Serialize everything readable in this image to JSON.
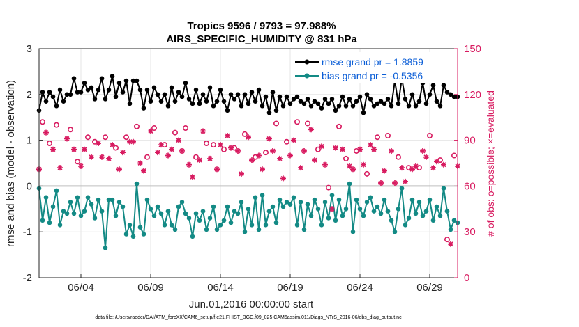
{
  "chart_data": {
    "type": "line",
    "title": "Tropics 9596 / 9793 = 97.988%",
    "subtitle": "AIRS_SPECIFIC_HUMIDITY @ 831 hPa",
    "xlabel": "Jun.01,2016 00:00:00 start",
    "ylabel": "rmse and bias (model - observation)",
    "ylabel_right": "# of obs: o=possible; ×=evaluated",
    "footer": "data file: /Users/raeder/DAI/ATM_forcXX/CAM6_setup/f.e21.FHIST_BGC.f09_025.CAM6assim.011/Diags_NTrS_2016-06/obs_diag_output.nc",
    "xlim": [
      1.0,
      31.0
    ],
    "ylim": [
      -2,
      3
    ],
    "ylim_right": [
      0,
      150
    ],
    "x_ticks": [
      4,
      9,
      14,
      19,
      24,
      29
    ],
    "x_tick_labels": [
      "06/04",
      "06/09",
      "06/14",
      "06/19",
      "06/24",
      "06/29"
    ],
    "y_ticks": [
      "-2",
      "-1",
      "0",
      "1",
      "2",
      "3"
    ],
    "y_ticks_right": [
      "0",
      "30",
      "60",
      "90",
      "120",
      "150"
    ],
    "grid": true,
    "legend_location": "top-right",
    "series": [
      {
        "name": "rmse grand pr = 1.8859",
        "axis": "left",
        "color": "#000000",
        "marker": "filled-circle",
        "x": [
          1.0,
          1.25,
          1.5,
          1.75,
          2.0,
          2.25,
          2.5,
          2.75,
          3.0,
          3.25,
          3.5,
          3.75,
          4.0,
          4.25,
          4.5,
          4.75,
          5.0,
          5.25,
          5.5,
          5.75,
          6.0,
          6.25,
          6.5,
          6.75,
          7.0,
          7.25,
          7.5,
          7.75,
          8.0,
          8.25,
          8.5,
          8.75,
          9.0,
          9.25,
          9.5,
          9.75,
          10.0,
          10.25,
          10.5,
          10.75,
          11.0,
          11.25,
          11.5,
          11.75,
          12.0,
          12.25,
          12.5,
          12.75,
          13.0,
          13.25,
          13.5,
          13.75,
          14.0,
          14.25,
          14.5,
          14.75,
          15.0,
          15.25,
          15.5,
          15.75,
          16.0,
          16.25,
          16.5,
          16.75,
          17.0,
          17.25,
          17.5,
          17.75,
          18.0,
          18.25,
          18.5,
          18.75,
          19.0,
          19.25,
          19.5,
          19.75,
          20.0,
          20.25,
          20.5,
          20.75,
          21.0,
          21.25,
          21.5,
          21.75,
          22.0,
          22.25,
          22.5,
          22.75,
          23.0,
          23.25,
          23.5,
          23.75,
          24.0,
          24.25,
          24.5,
          24.75,
          25.0,
          25.25,
          25.5,
          25.75,
          26.0,
          26.25,
          26.5,
          26.75,
          27.0,
          27.25,
          27.5,
          27.75,
          28.0,
          28.25,
          28.5,
          28.75,
          29.0,
          29.25,
          29.5,
          29.75,
          30.0,
          30.25,
          30.5,
          30.75,
          31.0
        ],
        "values": [
          1.65,
          2.05,
          1.85,
          2.05,
          1.95,
          1.75,
          2.1,
          1.85,
          2.0,
          2.0,
          2.35,
          2.05,
          2.05,
          2.25,
          2.1,
          2.15,
          1.9,
          2.1,
          2.35,
          1.9,
          2.1,
          2.4,
          1.95,
          2.25,
          2.05,
          2.3,
          1.8,
          2.3,
          2.3,
          2.1,
          1.7,
          2.1,
          1.85,
          2.15,
          2.0,
          1.85,
          2.0,
          1.75,
          2.15,
          1.85,
          2.05,
          1.95,
          2.25,
          1.9,
          1.8,
          2.1,
          1.8,
          2.0,
          1.85,
          2.15,
          1.75,
          1.85,
          2.1,
          1.85,
          1.65,
          2.0,
          1.9,
          2.0,
          1.75,
          2.0,
          1.8,
          2.05,
          1.85,
          2.1,
          1.75,
          1.95,
          1.6,
          2.05,
          1.65,
          1.95,
          1.75,
          1.95,
          1.8,
          1.9,
          1.95,
          1.85,
          1.8,
          1.9,
          1.75,
          1.85,
          1.8,
          1.7,
          1.9,
          1.8,
          1.9,
          1.65,
          1.75,
          1.95,
          1.75,
          1.9,
          1.75,
          1.85,
          1.95,
          1.6,
          2.0,
          1.9,
          1.75,
          1.8,
          1.85,
          1.8,
          1.9,
          1.75,
          2.3,
          1.8,
          2.35,
          1.9,
          1.75,
          2.0,
          1.75,
          1.85,
          2.25,
          1.8,
          2.0,
          2.2,
          1.85,
          1.75,
          2.2,
          2.05,
          2.0,
          1.95,
          1.95
        ]
      },
      {
        "name": "bias grand pr = -0.5356",
        "axis": "left",
        "color": "#138a85",
        "marker": "filled-circle",
        "x": [
          1.0,
          1.25,
          1.5,
          1.75,
          2.0,
          2.25,
          2.5,
          2.75,
          3.0,
          3.25,
          3.5,
          3.75,
          4.0,
          4.25,
          4.5,
          4.75,
          5.0,
          5.25,
          5.5,
          5.75,
          6.0,
          6.25,
          6.5,
          6.75,
          7.0,
          7.25,
          7.5,
          7.75,
          8.0,
          8.25,
          8.5,
          8.75,
          9.0,
          9.25,
          9.5,
          9.75,
          10.0,
          10.25,
          10.5,
          10.75,
          11.0,
          11.25,
          11.5,
          11.75,
          12.0,
          12.25,
          12.5,
          12.75,
          13.0,
          13.25,
          13.5,
          13.75,
          14.0,
          14.25,
          14.5,
          14.75,
          15.0,
          15.25,
          15.5,
          15.75,
          16.0,
          16.25,
          16.5,
          16.75,
          17.0,
          17.25,
          17.5,
          17.75,
          18.0,
          18.25,
          18.5,
          18.75,
          19.0,
          19.25,
          19.5,
          19.75,
          20.0,
          20.25,
          20.5,
          20.75,
          21.0,
          21.25,
          21.5,
          21.75,
          22.0,
          22.25,
          22.5,
          22.75,
          23.0,
          23.25,
          23.5,
          23.75,
          24.0,
          24.25,
          24.5,
          24.75,
          25.0,
          25.25,
          25.5,
          25.75,
          26.0,
          26.25,
          26.5,
          26.75,
          27.0,
          27.25,
          27.5,
          27.75,
          28.0,
          28.25,
          28.5,
          28.75,
          29.0,
          29.25,
          29.5,
          29.75,
          30.0,
          30.25,
          30.5,
          30.75,
          31.0
        ],
        "values": [
          -0.05,
          -0.75,
          -0.25,
          -0.8,
          -0.45,
          -0.1,
          -0.85,
          -0.55,
          -0.6,
          -0.35,
          -0.6,
          -0.25,
          -0.65,
          -0.55,
          -0.25,
          -0.4,
          -0.7,
          -0.3,
          -0.55,
          -1.35,
          -0.3,
          -0.3,
          -0.65,
          -0.35,
          -0.45,
          -1.05,
          -0.85,
          -1.1,
          0.05,
          -0.9,
          -1.05,
          -0.3,
          -0.5,
          -0.65,
          -0.45,
          -0.6,
          -0.85,
          -0.55,
          -0.85,
          -0.95,
          -0.45,
          -0.35,
          -0.6,
          -0.7,
          -1.1,
          -0.6,
          -0.75,
          -0.55,
          -0.95,
          -0.7,
          -0.45,
          -0.95,
          -0.85,
          -0.75,
          -0.45,
          -0.8,
          -0.55,
          -0.6,
          -0.35,
          -1.0,
          -0.5,
          -0.85,
          -0.25,
          -0.95,
          -0.2,
          -0.85,
          -0.55,
          -0.45,
          -0.8,
          -0.3,
          -0.45,
          -0.35,
          -0.4,
          -0.25,
          -0.85,
          -0.35,
          -0.95,
          -0.4,
          -0.65,
          -0.3,
          -0.5,
          -0.85,
          -0.35,
          -0.7,
          -0.2,
          -0.75,
          -0.3,
          -0.65,
          -0.5,
          0.05,
          -1.0,
          -0.3,
          -0.5,
          -0.65,
          -0.35,
          -0.25,
          -0.55,
          -0.45,
          -0.6,
          -0.3,
          -0.55,
          -0.75,
          -1.0,
          -0.5,
          -0.05,
          -0.85,
          -0.7,
          -0.3,
          -0.6,
          -0.35,
          -0.65,
          -0.55,
          -0.3,
          -0.75,
          -0.45,
          -0.65,
          -0.05,
          -0.55,
          -0.95,
          -0.75,
          -0.8
        ]
      },
      {
        "name": "possible",
        "axis": "right",
        "color": "#d81b60",
        "marker": "open-circle",
        "x": [
          1.25,
          1.75,
          2.25,
          3.25,
          3.75,
          4.5,
          5.0,
          5.75,
          6.5,
          7.25,
          8.0,
          8.75,
          9.25,
          10.0,
          10.75,
          11.5,
          12.25,
          13.0,
          13.5,
          14.25,
          15.0,
          15.75,
          16.5,
          17.25,
          18.0,
          18.75,
          19.5,
          20.25,
          21.0,
          21.75,
          22.5,
          23.0,
          23.75,
          24.5,
          25.25,
          26.0,
          26.75,
          27.5,
          28.25,
          29.0,
          29.75,
          30.25,
          30.75
        ],
        "values": [
          102,
          88,
          100,
          97,
          76,
          92,
          89,
          92,
          85,
          92,
          99,
          79,
          98,
          87,
          95,
          98,
          79,
          88,
          87,
          84,
          85,
          94,
          79,
          82,
          101,
          89,
          102,
          101,
          84,
          59,
          99,
          78,
          83,
          68,
          92,
          93,
          79,
          72,
          72,
          93,
          77,
          25,
          80
        ]
      },
      {
        "name": "evaluated",
        "axis": "right",
        "color": "#d81b60",
        "marker": "asterisk",
        "x": [
          1.0,
          1.5,
          2.0,
          2.5,
          3.0,
          3.5,
          4.0,
          4.25,
          4.75,
          5.25,
          5.5,
          6.0,
          6.25,
          6.75,
          7.0,
          7.5,
          7.75,
          8.25,
          8.5,
          9.0,
          9.5,
          9.75,
          10.25,
          10.5,
          11.0,
          11.25,
          11.75,
          12.0,
          12.5,
          12.75,
          13.25,
          13.75,
          14.0,
          14.5,
          14.75,
          15.25,
          15.5,
          16.0,
          16.25,
          16.75,
          17.0,
          17.5,
          17.75,
          18.25,
          18.5,
          19.0,
          19.25,
          19.75,
          20.0,
          20.5,
          20.75,
          21.25,
          21.5,
          22.0,
          22.25,
          22.75,
          23.25,
          23.5,
          24.0,
          24.25,
          24.75,
          25.0,
          25.5,
          25.75,
          26.25,
          26.5,
          27.0,
          27.25,
          27.75,
          28.0,
          28.5,
          28.75,
          29.25,
          29.5,
          30.0,
          30.5,
          31.0
        ],
        "values": [
          71,
          95,
          84,
          72,
          91,
          84,
          73,
          84,
          79,
          88,
          79,
          78,
          87,
          71,
          82,
          89,
          89,
          75,
          70,
          96,
          82,
          87,
          80,
          84,
          90,
          83,
          74,
          66,
          77,
          96,
          78,
          71,
          87,
          93,
          85,
          83,
          68,
          92,
          77,
          80,
          71,
          91,
          83,
          78,
          65,
          80,
          90,
          72,
          83,
          97,
          77,
          86,
          74,
          45,
          85,
          84,
          73,
          71,
          84,
          74,
          87,
          84,
          62,
          70,
          83,
          62,
          72,
          63,
          71,
          73,
          83,
          79,
          72,
          76,
          74,
          22,
          73
        ]
      }
    ]
  }
}
